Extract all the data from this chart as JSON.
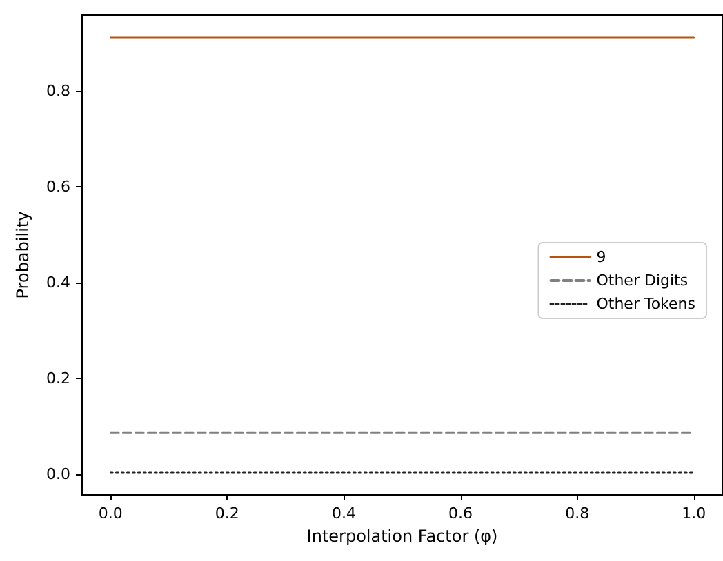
{
  "chart_data": {
    "type": "line",
    "xlabel": "Interpolation Factor (φ)",
    "ylabel": "Probability",
    "x": [
      0,
      1.0
    ],
    "series": [
      {
        "name": "9",
        "color": "#b5540f",
        "line_style": "solid",
        "values": [
          0.912,
          0.912
        ]
      },
      {
        "name": "Other Digits",
        "color": "#808080",
        "line_style": "dashed",
        "values": [
          0.086,
          0.086
        ]
      },
      {
        "name": "Other Tokens",
        "color": "#222222",
        "line_style": "dotted",
        "values": [
          0.003,
          0.003
        ]
      }
    ],
    "xlim": [
      -0.05,
      1.05
    ],
    "ylim": [
      -0.043,
      0.958
    ],
    "xticks": [
      {
        "value": 0,
        "label": "0.0"
      },
      {
        "value": 0.2,
        "label": "0.2"
      },
      {
        "value": 0.4,
        "label": "0.4"
      },
      {
        "value": 0.6,
        "label": "0.6"
      },
      {
        "value": 0.8,
        "label": "0.8"
      },
      {
        "value": 1,
        "label": "1.0"
      }
    ],
    "yticks": [
      {
        "value": 0,
        "label": "0.0"
      },
      {
        "value": 0.2,
        "label": "0.2"
      },
      {
        "value": 0.4,
        "label": "0.4"
      },
      {
        "value": 0.6,
        "label": "0.6"
      },
      {
        "value": 0.8,
        "label": "0.8"
      }
    ],
    "grid": false,
    "legend": "right",
    "marker": "none"
  }
}
